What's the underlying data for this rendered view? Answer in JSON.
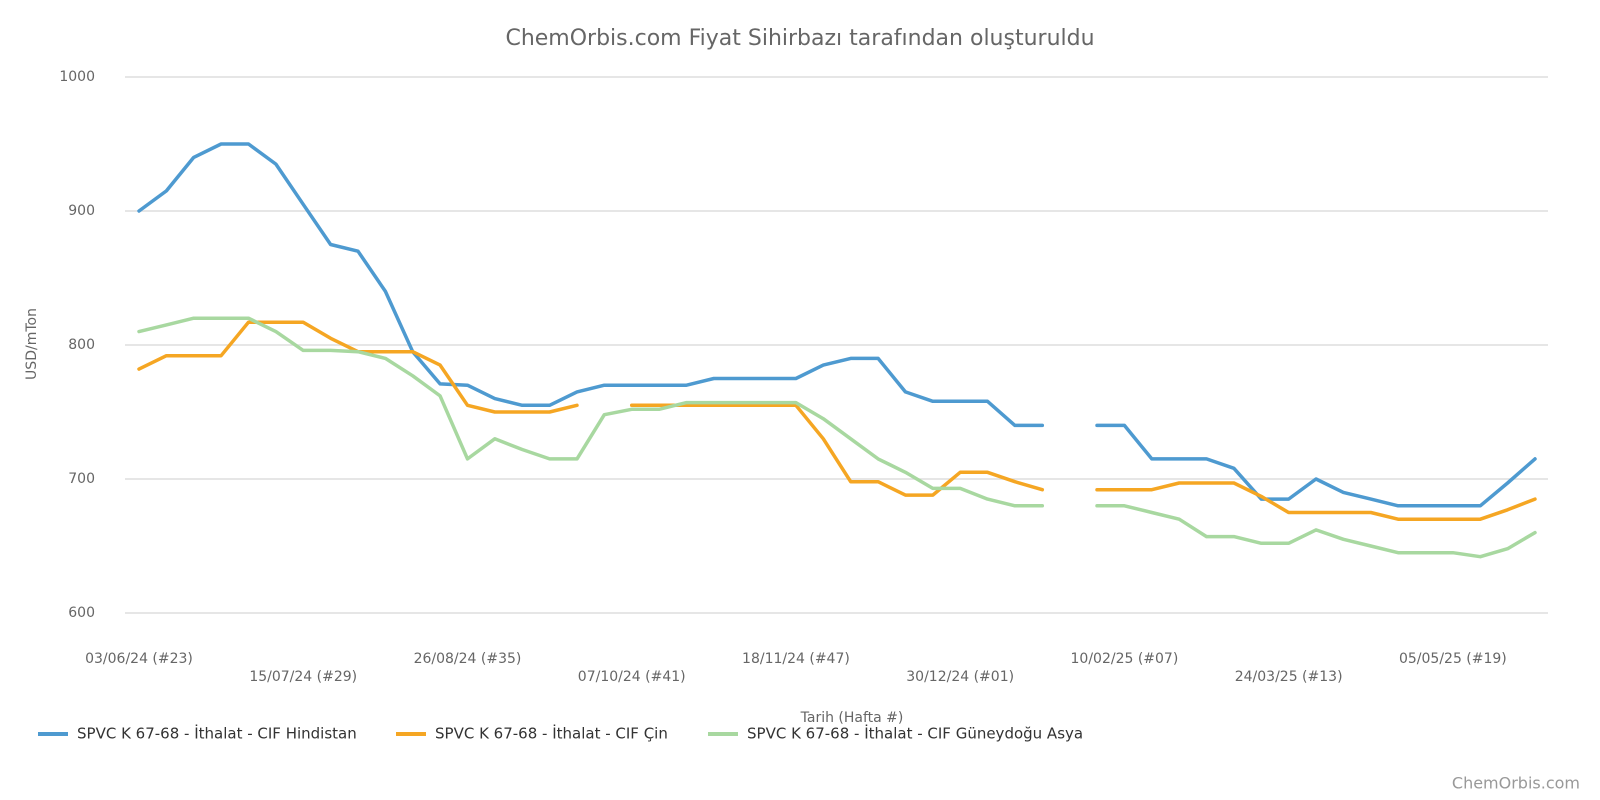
{
  "chart_data": {
    "type": "line",
    "title": "ChemOrbis.com Fiyat Sihirbazı tarafından oluşturuldu",
    "x_label": "Tarih (Hafta #)",
    "y_label": "USD/mTon",
    "credit": "ChemOrbis.com",
    "categories": [
      "03/06/24 (#23)",
      null,
      null,
      null,
      null,
      null,
      "15/07/24 (#29)",
      null,
      null,
      null,
      null,
      null,
      "26/08/24 (#35)",
      null,
      null,
      null,
      null,
      null,
      "07/10/24 (#41)",
      null,
      null,
      null,
      null,
      null,
      "18/11/24 (#47)",
      null,
      null,
      null,
      null,
      null,
      "30/12/24 (#01)",
      null,
      null,
      null,
      null,
      null,
      "10/02/25 (#07)",
      null,
      null,
      null,
      null,
      null,
      "24/03/25 (#13)",
      null,
      null,
      null,
      null,
      null,
      "05/05/25 (#19)",
      null,
      null,
      null
    ],
    "series": [
      {
        "name": "SPVC K 67-68 - İthalat - CIF Hindistan",
        "color": "#4e9ad0",
        "values": [
          900,
          915,
          940,
          950,
          950,
          935,
          905,
          875,
          870,
          840,
          795,
          771,
          770,
          760,
          755,
          755,
          765,
          770,
          770,
          770,
          770,
          775,
          775,
          775,
          775,
          785,
          790,
          790,
          765,
          758,
          758,
          758,
          740,
          740,
          null,
          740,
          740,
          715,
          715,
          715,
          708,
          685,
          685,
          700,
          690,
          685,
          680,
          680,
          680,
          680,
          697,
          715
        ]
      },
      {
        "name": "SPVC K 67-68 - İthalat - CIF Çin",
        "color": "#f5a623",
        "values": [
          782,
          792,
          792,
          792,
          817,
          817,
          817,
          805,
          795,
          795,
          795,
          785,
          755,
          750,
          750,
          750,
          755,
          null,
          755,
          755,
          755,
          755,
          755,
          755,
          755,
          730,
          698,
          698,
          688,
          688,
          705,
          705,
          698,
          692,
          null,
          692,
          692,
          692,
          697,
          697,
          697,
          687,
          675,
          675,
          675,
          675,
          670,
          670,
          670,
          670,
          677,
          685
        ]
      },
      {
        "name": "SPVC K 67-68 - İthalat - CIF Güneydoğu Asya",
        "color": "#a8d8a0",
        "values": [
          810,
          815,
          820,
          820,
          820,
          810,
          796,
          796,
          795,
          790,
          777,
          762,
          715,
          730,
          722,
          715,
          715,
          748,
          752,
          752,
          757,
          757,
          757,
          757,
          757,
          745,
          730,
          715,
          705,
          693,
          693,
          685,
          680,
          680,
          null,
          680,
          680,
          675,
          670,
          657,
          657,
          652,
          652,
          662,
          655,
          650,
          645,
          645,
          645,
          642,
          648,
          660
        ]
      }
    ],
    "ylim": [
      600,
      1000
    ],
    "yticks": [
      600,
      700,
      800,
      900,
      1000
    ],
    "grid": true,
    "legend": "bottom"
  }
}
